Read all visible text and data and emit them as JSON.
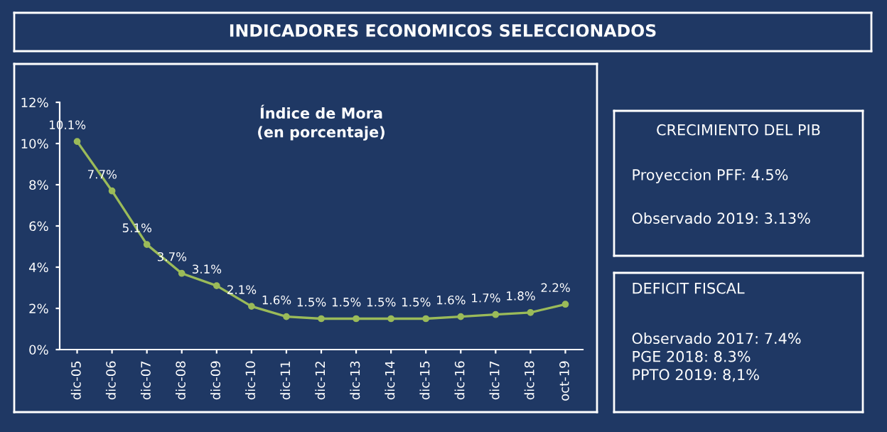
{
  "chart_data": [
    {
      "type": "other",
      "title": "INDICADORES ECONOMICOS SELECCIONADOS"
    },
    {
      "type": "line",
      "title": "Índice de Mora\n(en porcentaje)",
      "categories": [
        "dic-05",
        "dic-06",
        "dic-07",
        "dic-08",
        "dic-09",
        "dic-10",
        "dic-11",
        "dic-12",
        "dic-13",
        "dic-14",
        "dic-15",
        "dic-16",
        "dic-17",
        "dic-18",
        "oct-19"
      ],
      "series": [
        {
          "color": "#9bbb59",
          "values": [
            10.1,
            7.7,
            5.1,
            3.7,
            3.1,
            2.1,
            1.6,
            1.5,
            1.5,
            1.5,
            1.5,
            1.6,
            1.7,
            1.8,
            2.2
          ],
          "value_labels": [
            "10.1%",
            "7.7%",
            "5.1%",
            "3.7%",
            "3.1%",
            "2.1%",
            "1.6%",
            "1.5%",
            "1.5%",
            "1.5%",
            "1.5%",
            "1.6%",
            "1.7%",
            "1.8%",
            "2.2%"
          ]
        }
      ],
      "ylim": [
        0,
        12
      ],
      "yticks": [
        {
          "value": 0,
          "label": "0%"
        },
        {
          "value": 2,
          "label": "2%"
        },
        {
          "value": 4,
          "label": "4%"
        },
        {
          "value": 6,
          "label": "6%"
        },
        {
          "value": 8,
          "label": "8%"
        },
        {
          "value": 10,
          "label": "10%"
        },
        {
          "value": 12,
          "label": "12%"
        }
      ],
      "grid": false,
      "legend": false,
      "marker": "circle",
      "line_style": "solid"
    },
    {
      "type": "other",
      "title": "CRECIMIENTO DEL PIB",
      "annotations": [
        "Proyeccion PFF: 4.5%",
        "Observado 2019: 3.13%"
      ]
    },
    {
      "type": "other",
      "title": "DEFICIT FISCAL",
      "annotations": [
        "Observado 2017: 7.4%",
        "PGE 2018: 8.3%",
        "PPTO 2019: 8,1%"
      ]
    }
  ]
}
